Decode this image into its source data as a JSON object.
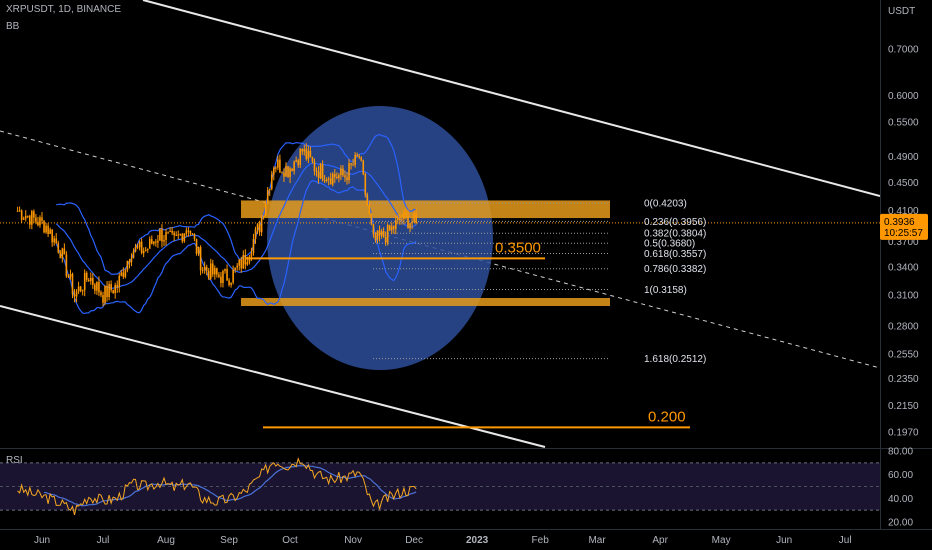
{
  "header": {
    "symbol": "XRPUSDT, 1D, BINANCE",
    "indicator": "BB"
  },
  "price_axis": {
    "unit": "USDT"
  },
  "rsi_pane": {
    "label": "RSI"
  },
  "last_price": {
    "price": "0.3936",
    "countdown": "10:25:57",
    "color": "#ff9800"
  },
  "colors": {
    "accent": "#ff9800",
    "band": "#2962ff",
    "circle": "#2e4d99",
    "rsi": "#f5a623",
    "rsi_ma": "#4a72d8",
    "zone": "#e69a1a"
  },
  "annotations": {
    "level_350": "0.3500",
    "level_200": "0.200"
  },
  "chart_data": [
    {
      "type": "candlestick",
      "title": "XRPUSDT, 1D, BINANCE",
      "y_scale": "log",
      "y_ticks": [
        "0.7000",
        "0.6000",
        "0.5500",
        "0.4900",
        "0.4500",
        "0.4100",
        "0.3700",
        "0.3400",
        "0.3100",
        "0.2800",
        "0.2550",
        "0.2350",
        "0.2150",
        "0.1970"
      ],
      "x_ticks": [
        "Jun",
        "Jul",
        "Aug",
        "Sep",
        "Oct",
        "Nov",
        "Dec",
        "2023",
        "Feb",
        "Mar",
        "Apr",
        "May",
        "Jun",
        "Jul"
      ],
      "fib_levels": [
        {
          "label": "0(0.4203)",
          "value": 0.4203
        },
        {
          "label": "0.236(0.3956)",
          "value": 0.3956
        },
        {
          "label": "0.382(0.3804)",
          "value": 0.3804
        },
        {
          "label": "0.5(0.3680)",
          "value": 0.368
        },
        {
          "label": "0.618(0.3557)",
          "value": 0.3557
        },
        {
          "label": "0.786(0.3382)",
          "value": 0.3382
        },
        {
          "label": "1(0.3158)",
          "value": 0.3158
        },
        {
          "label": "1.618(0.2512)",
          "value": 0.2512
        }
      ],
      "horizontal_levels": [
        0.35,
        0.2
      ],
      "zones": [
        [
          0.4,
          0.424
        ],
        [
          0.3,
          0.307
        ]
      ],
      "close_series": [
        [
          "2022-05-20",
          0.41
        ],
        [
          "2022-05-27",
          0.4
        ],
        [
          "2022-06-03",
          0.39
        ],
        [
          "2022-06-10",
          0.36
        ],
        [
          "2022-06-17",
          0.31
        ],
        [
          "2022-06-24",
          0.33
        ],
        [
          "2022-07-01",
          0.31
        ],
        [
          "2022-07-08",
          0.32
        ],
        [
          "2022-07-15",
          0.36
        ],
        [
          "2022-07-22",
          0.36
        ],
        [
          "2022-07-29",
          0.38
        ],
        [
          "2022-08-05",
          0.37
        ],
        [
          "2022-08-12",
          0.39
        ],
        [
          "2022-08-19",
          0.34
        ],
        [
          "2022-08-26",
          0.33
        ],
        [
          "2022-09-02",
          0.33
        ],
        [
          "2022-09-09",
          0.35
        ],
        [
          "2022-09-16",
          0.39
        ],
        [
          "2022-09-23",
          0.48
        ],
        [
          "2022-09-30",
          0.47
        ],
        [
          "2022-10-07",
          0.5
        ],
        [
          "2022-10-14",
          0.47
        ],
        [
          "2022-10-21",
          0.46
        ],
        [
          "2022-10-28",
          0.46
        ],
        [
          "2022-11-04",
          0.49
        ],
        [
          "2022-11-11",
          0.37
        ],
        [
          "2022-11-18",
          0.38
        ],
        [
          "2022-11-25",
          0.4
        ],
        [
          "2022-12-02",
          0.3936
        ]
      ]
    },
    {
      "type": "line",
      "title": "RSI",
      "y_ticks": [
        "80.00",
        "60.00",
        "40.00",
        "20.00"
      ],
      "ylim": [
        15,
        85
      ],
      "bands": [
        70,
        50,
        30
      ],
      "series": [
        {
          "values": [
            [
              "2022-05-20",
              48
            ],
            [
              "2022-05-27",
              44
            ],
            [
              "2022-06-03",
              41
            ],
            [
              "2022-06-10",
              36
            ],
            [
              "2022-06-17",
              30
            ],
            [
              "2022-06-24",
              42
            ],
            [
              "2022-07-01",
              38
            ],
            [
              "2022-07-08",
              40
            ],
            [
              "2022-07-15",
              52
            ],
            [
              "2022-07-22",
              50
            ],
            [
              "2022-07-29",
              54
            ],
            [
              "2022-08-05",
              49
            ],
            [
              "2022-08-12",
              53
            ],
            [
              "2022-08-19",
              40
            ],
            [
              "2022-08-26",
              37
            ],
            [
              "2022-09-02",
              40
            ],
            [
              "2022-09-09",
              46
            ],
            [
              "2022-09-16",
              58
            ],
            [
              "2022-09-23",
              72
            ],
            [
              "2022-09-30",
              68
            ],
            [
              "2022-10-07",
              74
            ],
            [
              "2022-10-14",
              60
            ],
            [
              "2022-10-21",
              56
            ],
            [
              "2022-10-28",
              58
            ],
            [
              "2022-11-04",
              62
            ],
            [
              "2022-11-11",
              32
            ],
            [
              "2022-11-18",
              40
            ],
            [
              "2022-11-25",
              46
            ],
            [
              "2022-12-02",
              48
            ]
          ]
        }
      ]
    }
  ]
}
